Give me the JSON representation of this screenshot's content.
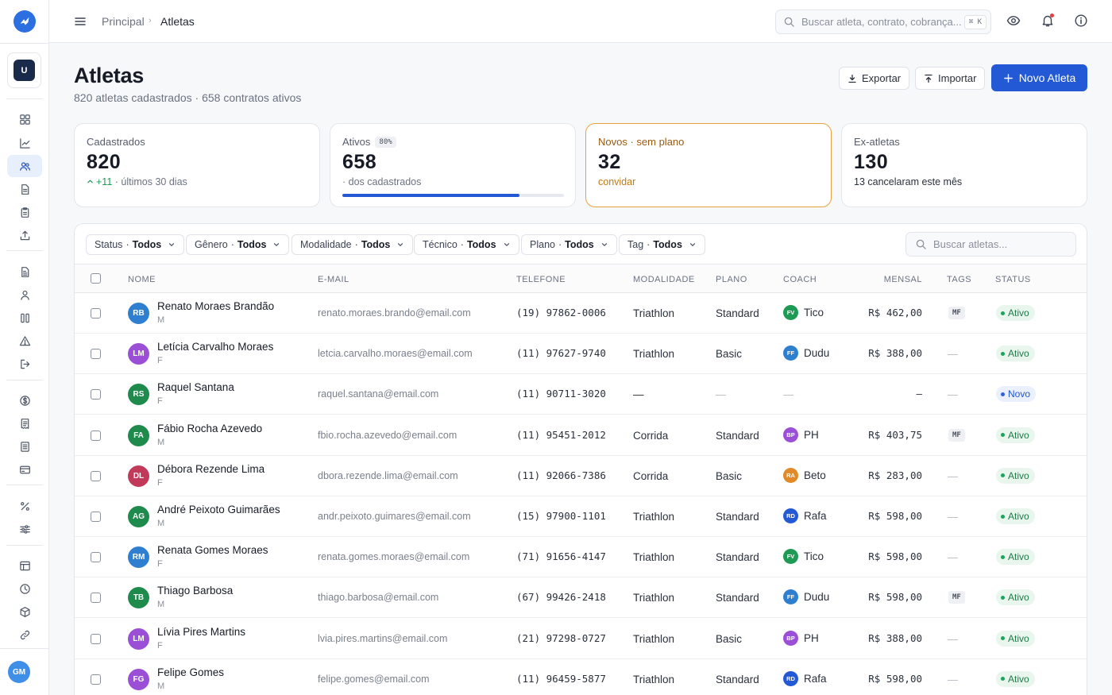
{
  "topbar": {
    "breadcrumb_home": "Principal",
    "breadcrumb_current": "Atletas",
    "search_placeholder": "Buscar atleta, contrato, cobrança...",
    "search_shortcut": "⌘ K"
  },
  "workspace": {
    "badge": "U"
  },
  "user": {
    "initials": "GM"
  },
  "header": {
    "title": "Atletas",
    "subtitle": "820 atletas cadastrados · 658 contratos ativos",
    "export_label": "Exportar",
    "import_label": "Importar",
    "new_label": "Novo Atleta"
  },
  "stats": {
    "cadastrados": {
      "label": "Cadastrados",
      "value": "820",
      "delta": "+11",
      "delta_note": "· últimos 30 dias"
    },
    "ativos": {
      "label": "Ativos",
      "pill": "80%",
      "value": "658",
      "note": "· dos cadastrados",
      "progress": 0.8
    },
    "novos": {
      "label": "Novos · sem plano",
      "value": "32",
      "note": "convidar"
    },
    "ex": {
      "label": "Ex-atletas",
      "value": "130",
      "note": "13 cancelaram este mês"
    }
  },
  "filters": [
    {
      "label": "Status",
      "value": "Todos"
    },
    {
      "label": "Gênero",
      "value": "Todos"
    },
    {
      "label": "Modalidade",
      "value": "Todos"
    },
    {
      "label": "Técnico",
      "value": "Todos"
    },
    {
      "label": "Plano",
      "value": "Todos"
    },
    {
      "label": "Tag",
      "value": "Todos"
    }
  ],
  "table_search_placeholder": "Buscar atletas...",
  "columns": {
    "nome": "NOME",
    "email": "E-MAIL",
    "telefone": "TELEFONE",
    "modalidade": "MODALIDADE",
    "plano": "PLANO",
    "coach": "COACH",
    "mensal": "MENSAL",
    "tags": "TAGS",
    "status": "STATUS"
  },
  "rows": [
    {
      "initials": "RB",
      "name": "Renato Moraes Brandão",
      "gender": "M",
      "email": "renato.moraes.brando@email.com",
      "phone": "(19) 97862-0006",
      "modality": "Triathlon",
      "plan": "Standard",
      "coach_initials": "FV",
      "coach": "Tico",
      "monthly": "R$ 462,00",
      "tag": "MF",
      "status": "Ativo",
      "avatar_color": "#2f7fd0",
      "coach_color": "#1e9a55"
    },
    {
      "initials": "LM",
      "name": "Letícia Carvalho Moraes",
      "gender": "F",
      "email": "letcia.carvalho.moraes@email.com",
      "phone": "(11) 97627-9740",
      "modality": "Triathlon",
      "plan": "Basic",
      "coach_initials": "FF",
      "coach": "Dudu",
      "monthly": "R$ 388,00",
      "tag": "—",
      "status": "Ativo",
      "avatar_color": "#9b4fd6",
      "coach_color": "#2f7fd0"
    },
    {
      "initials": "RS",
      "name": "Raquel Santana",
      "gender": "F",
      "email": "raquel.santana@email.com",
      "phone": "(11) 90711-3020",
      "modality": "—",
      "plan": "—",
      "coach_initials": "",
      "coach": "—",
      "monthly": "—",
      "tag": "—",
      "status": "Novo",
      "avatar_color": "#1e8a4c",
      "coach_color": ""
    },
    {
      "initials": "FA",
      "name": "Fábio Rocha Azevedo",
      "gender": "M",
      "email": "fbio.rocha.azevedo@email.com",
      "phone": "(11) 95451-2012",
      "modality": "Corrida",
      "plan": "Standard",
      "coach_initials": "BP",
      "coach": "PH",
      "monthly": "R$ 403,75",
      "tag": "MF",
      "status": "Ativo",
      "avatar_color": "#1e8a4c",
      "coach_color": "#9b4fd6"
    },
    {
      "initials": "DL",
      "name": "Débora Rezende Lima",
      "gender": "F",
      "email": "dbora.rezende.lima@email.com",
      "phone": "(11) 92066-7386",
      "modality": "Corrida",
      "plan": "Basic",
      "coach_initials": "RA",
      "coach": "Beto",
      "monthly": "R$ 283,00",
      "tag": "—",
      "status": "Ativo",
      "avatar_color": "#c23a5a",
      "coach_color": "#e08a2a"
    },
    {
      "initials": "AG",
      "name": "André Peixoto Guimarães",
      "gender": "M",
      "email": "andr.peixoto.guimares@email.com",
      "phone": "(15) 97900-1101",
      "modality": "Triathlon",
      "plan": "Standard",
      "coach_initials": "RD",
      "coach": "Rafa",
      "monthly": "R$ 598,00",
      "tag": "—",
      "status": "Ativo",
      "avatar_color": "#1e8a4c",
      "coach_color": "#2459d6"
    },
    {
      "initials": "RM",
      "name": "Renata Gomes Moraes",
      "gender": "F",
      "email": "renata.gomes.moraes@email.com",
      "phone": "(71) 91656-4147",
      "modality": "Triathlon",
      "plan": "Standard",
      "coach_initials": "FV",
      "coach": "Tico",
      "monthly": "R$ 598,00",
      "tag": "—",
      "status": "Ativo",
      "avatar_color": "#2f7fd0",
      "coach_color": "#1e9a55"
    },
    {
      "initials": "TB",
      "name": "Thiago Barbosa",
      "gender": "M",
      "email": "thiago.barbosa@email.com",
      "phone": "(67) 99426-2418",
      "modality": "Triathlon",
      "plan": "Standard",
      "coach_initials": "FF",
      "coach": "Dudu",
      "monthly": "R$ 598,00",
      "tag": "MF",
      "status": "Ativo",
      "avatar_color": "#1e8a4c",
      "coach_color": "#2f7fd0"
    },
    {
      "initials": "LM",
      "name": "Lívia Pires Martins",
      "gender": "F",
      "email": "lvia.pires.martins@email.com",
      "phone": "(21) 97298-0727",
      "modality": "Triathlon",
      "plan": "Basic",
      "coach_initials": "BP",
      "coach": "PH",
      "monthly": "R$ 388,00",
      "tag": "—",
      "status": "Ativo",
      "avatar_color": "#9b4fd6",
      "coach_color": "#9b4fd6"
    },
    {
      "initials": "FG",
      "name": "Felipe Gomes",
      "gender": "M",
      "email": "felipe.gomes@email.com",
      "phone": "(11) 96459-5877",
      "modality": "Triathlon",
      "plan": "Standard",
      "coach_initials": "RD",
      "coach": "Rafa",
      "monthly": "R$ 598,00",
      "tag": "—",
      "status": "Ativo",
      "avatar_color": "#9b4fd6",
      "coach_color": "#2459d6"
    }
  ],
  "sidebar_icons": [
    "dashboard-icon",
    "chart-icon",
    "users-icon",
    "document-icon",
    "clipboard-icon",
    "upload-icon",
    "file-icon",
    "user-icon",
    "columns-icon",
    "alert-icon",
    "logout-icon",
    "dollar-icon",
    "receipt-icon",
    "list-icon",
    "card-icon",
    "percent-icon",
    "sliders-icon",
    "table-icon",
    "clock-icon",
    "box-icon",
    "link-icon"
  ],
  "colors": {
    "accent": "#2459d6",
    "warning": "#e9a13a",
    "success": "#1fa35c"
  }
}
